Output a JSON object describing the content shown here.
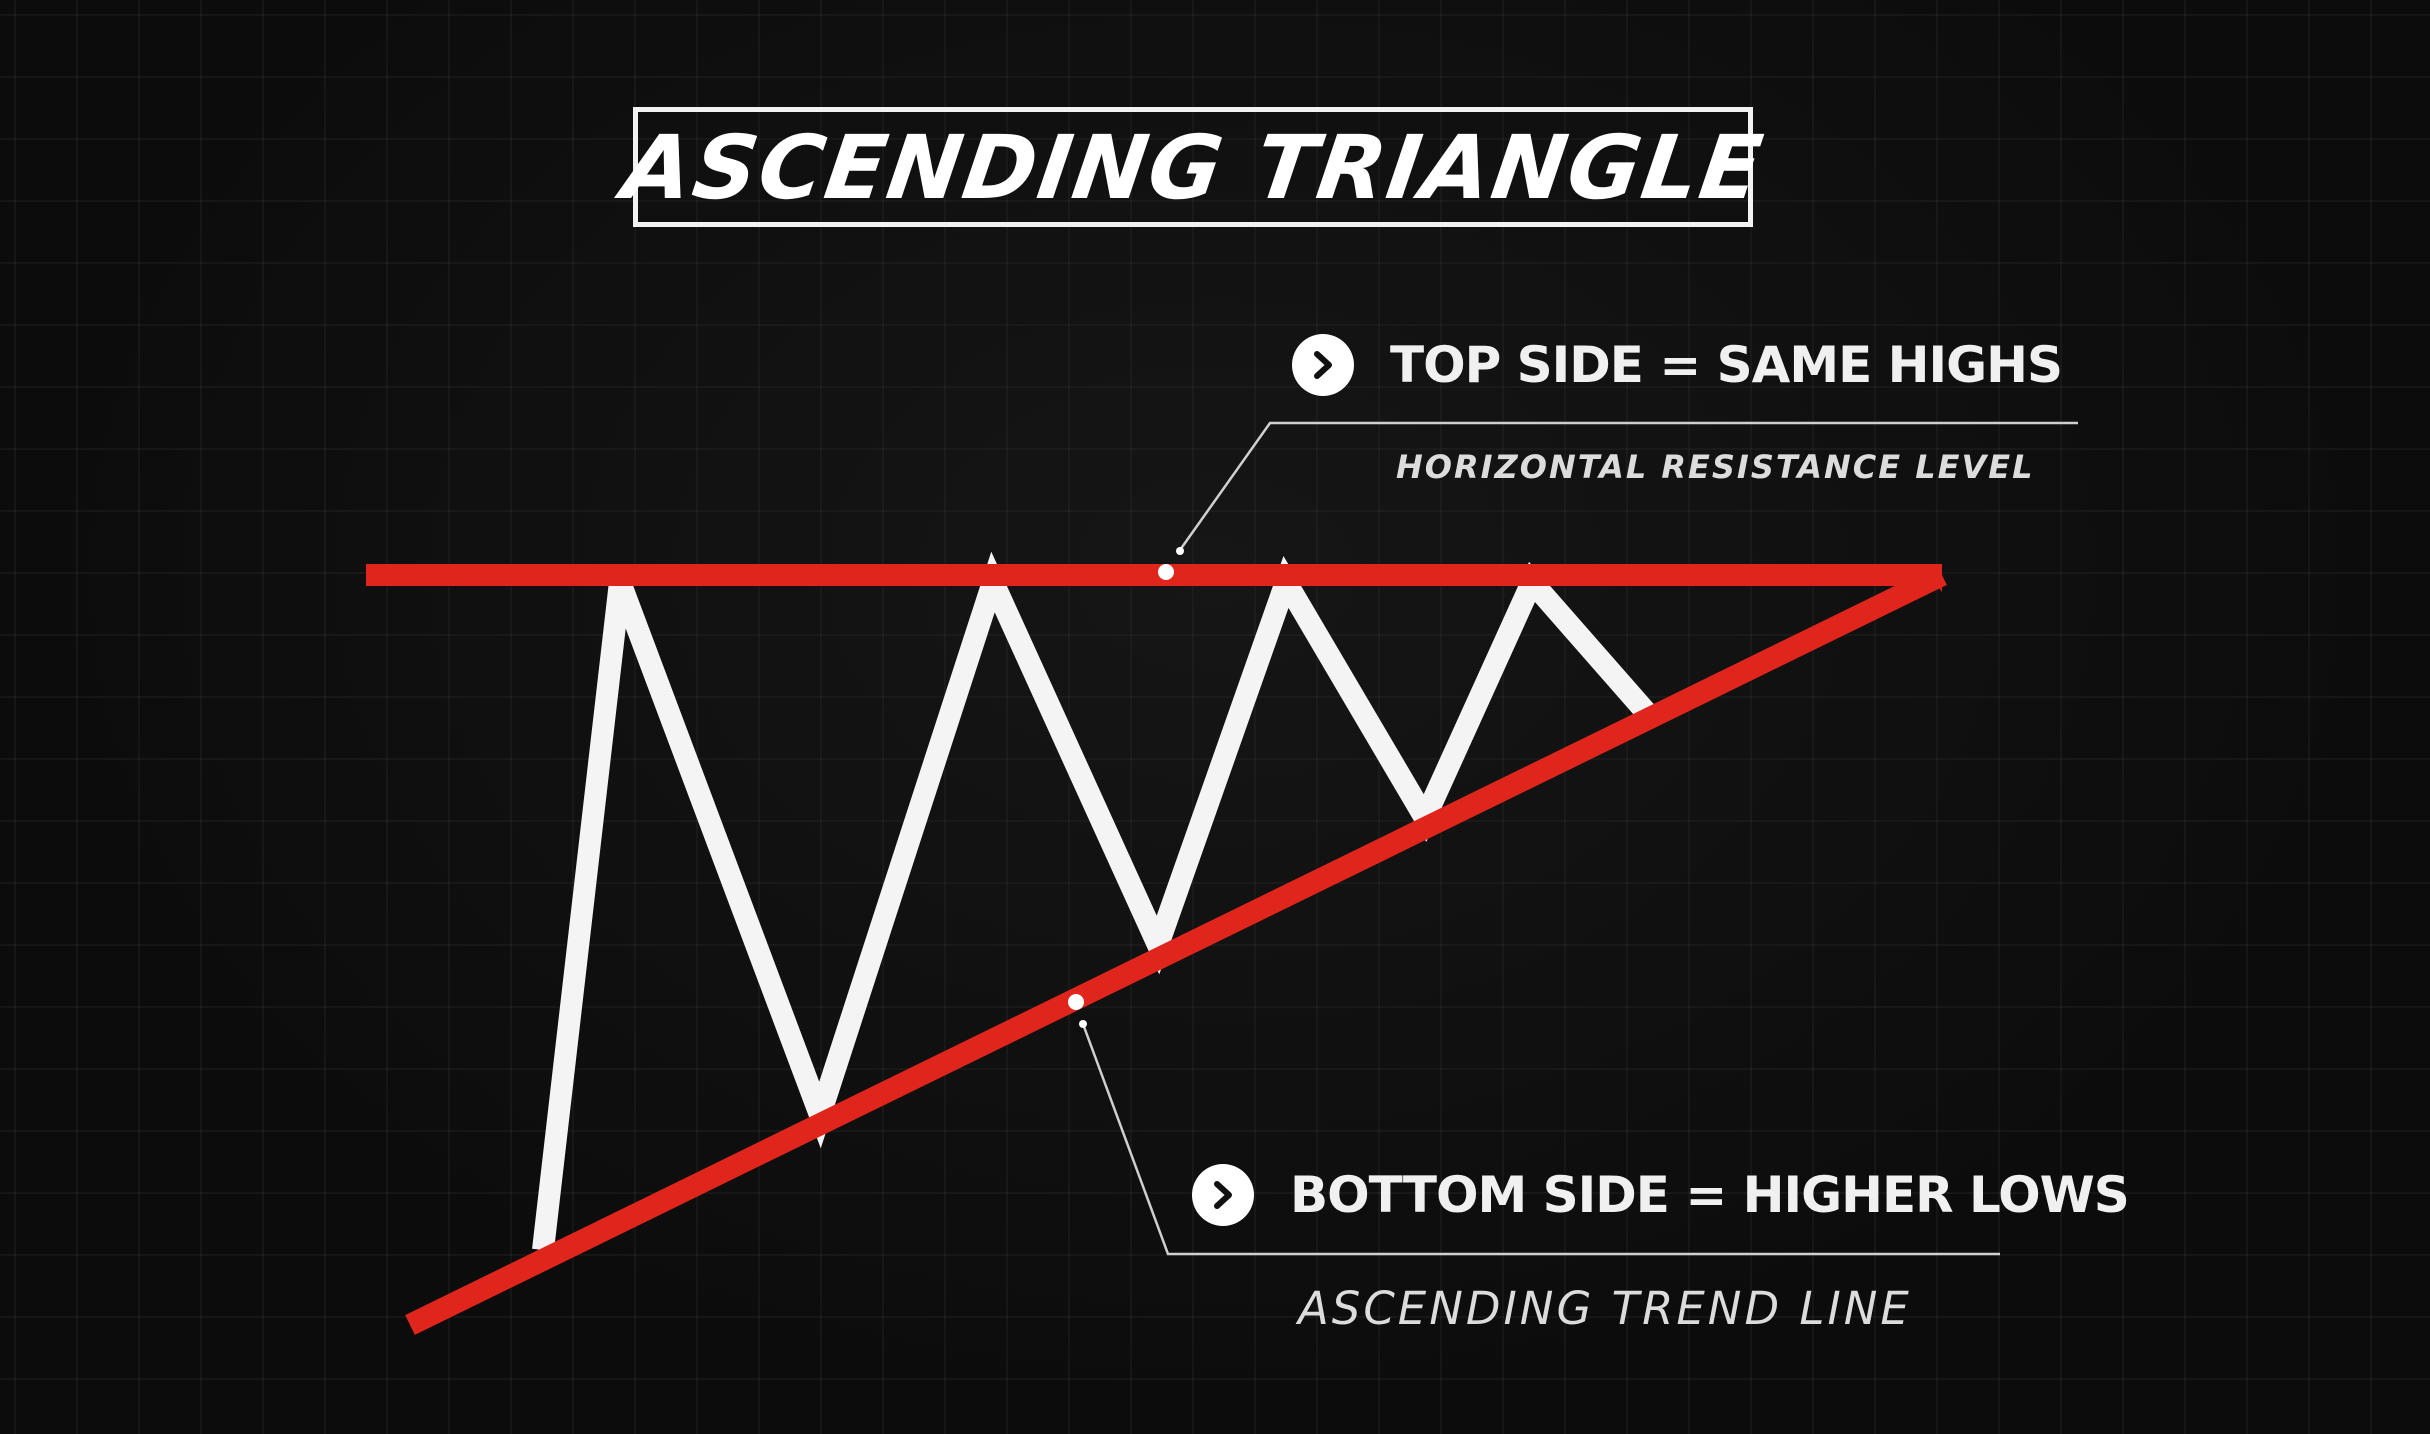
{
  "title": "ASCENDING TRIANGLE",
  "top_callout": {
    "label": "TOP SIDE = SAME HIGHS",
    "sublabel": "HORIZONTAL RESISTANCE LEVEL",
    "icon": "chevron-right-icon"
  },
  "bottom_callout": {
    "label": "BOTTOM SIDE = HIGHER LOWS",
    "sublabel": "ASCENDING TREND LINE",
    "icon": "chevron-right-icon"
  },
  "colors": {
    "background": "#0c0c0c",
    "resistance_line": "#e0261c",
    "trend_line": "#e0261c",
    "price_path": "#f4f4f4",
    "text": "#f0f0f0"
  }
}
